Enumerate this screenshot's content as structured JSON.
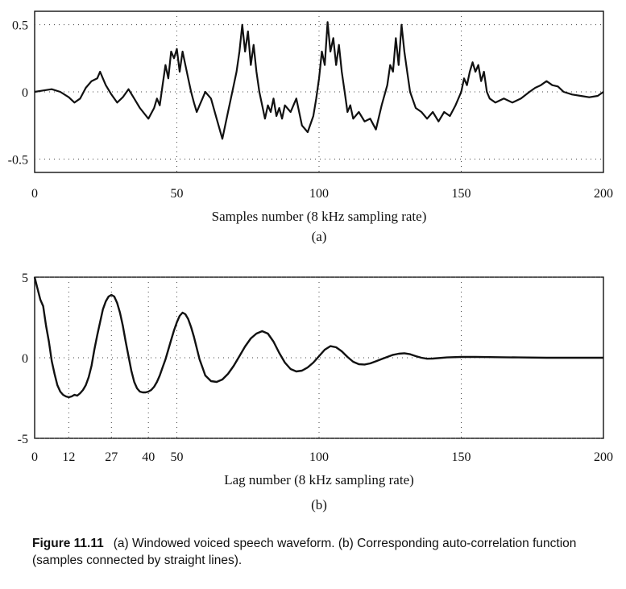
{
  "figure": {
    "number": "Figure 11.11",
    "caption": "(a) Windowed voiced speech waveform. (b) Corresponding auto-correlation function (samples connected by straight lines)."
  },
  "chart_data": [
    {
      "type": "line",
      "panel_label": "(a)",
      "xlabel": "Samples number (8 kHz sampling rate)",
      "ylabel": "",
      "xlim": [
        0,
        200
      ],
      "ylim": [
        -0.6,
        0.6
      ],
      "xticks": [
        0,
        50,
        100,
        150,
        200
      ],
      "xtick_labels": [
        "0",
        "50",
        "100",
        "150",
        "200"
      ],
      "yticks": [
        0.5,
        0,
        -0.5
      ],
      "ytick_labels": [
        "0.5",
        "0",
        "-0.5"
      ],
      "grid": "dotted",
      "series": [
        {
          "x": [
            0,
            3,
            6,
            9,
            12,
            14,
            16,
            18,
            20,
            22,
            23,
            24,
            25,
            27,
            29,
            31,
            33,
            35,
            37,
            40,
            42,
            43,
            44,
            45,
            46,
            47,
            48,
            49,
            50,
            51,
            52,
            53,
            54,
            55,
            56,
            57,
            58,
            59,
            60,
            62,
            64,
            66,
            68,
            70,
            71,
            72,
            73,
            74,
            75,
            76,
            77,
            78,
            79,
            80,
            81,
            82,
            83,
            84,
            85,
            86,
            87,
            88,
            90,
            92,
            94,
            96,
            98,
            99,
            100,
            101,
            102,
            103,
            104,
            105,
            106,
            107,
            108,
            109,
            110,
            111,
            112,
            114,
            116,
            118,
            120,
            122,
            124,
            125,
            126,
            127,
            128,
            129,
            130,
            131,
            132,
            134,
            136,
            138,
            140,
            142,
            144,
            146,
            148,
            150,
            151,
            152,
            153,
            154,
            155,
            156,
            157,
            158,
            159,
            160,
            162,
            165,
            168,
            171,
            174,
            176,
            178,
            180,
            182,
            184,
            186,
            189,
            192,
            195,
            198,
            200
          ],
          "y": [
            0,
            0.01,
            0.02,
            0,
            -0.04,
            -0.08,
            -0.05,
            0.03,
            0.08,
            0.1,
            0.15,
            0.1,
            0.05,
            -0.02,
            -0.08,
            -0.04,
            0.02,
            -0.05,
            -0.12,
            -0.2,
            -0.12,
            -0.05,
            -0.1,
            0.05,
            0.2,
            0.1,
            0.3,
            0.25,
            0.32,
            0.15,
            0.3,
            0.2,
            0.1,
            0,
            -0.08,
            -0.15,
            -0.1,
            -0.05,
            0,
            -0.05,
            -0.2,
            -0.35,
            -0.15,
            0.05,
            0.15,
            0.3,
            0.5,
            0.3,
            0.45,
            0.2,
            0.35,
            0.15,
            0,
            -0.1,
            -0.2,
            -0.1,
            -0.15,
            -0.05,
            -0.18,
            -0.12,
            -0.2,
            -0.1,
            -0.15,
            -0.05,
            -0.25,
            -0.3,
            -0.18,
            -0.05,
            0.1,
            0.3,
            0.2,
            0.52,
            0.3,
            0.4,
            0.2,
            0.35,
            0.15,
            0,
            -0.15,
            -0.1,
            -0.2,
            -0.15,
            -0.22,
            -0.2,
            -0.28,
            -0.1,
            0.05,
            0.2,
            0.15,
            0.4,
            0.2,
            0.5,
            0.3,
            0.15,
            0,
            -0.12,
            -0.15,
            -0.2,
            -0.15,
            -0.22,
            -0.15,
            -0.18,
            -0.1,
            0,
            0.1,
            0.05,
            0.15,
            0.22,
            0.15,
            0.2,
            0.08,
            0.15,
            0,
            -0.05,
            -0.08,
            -0.05,
            -0.08,
            -0.05,
            0,
            0.03,
            0.05,
            0.08,
            0.05,
            0.04,
            0,
            -0.02,
            -0.03,
            -0.04,
            -0.03,
            0
          ]
        }
      ]
    },
    {
      "type": "line",
      "panel_label": "(b)",
      "xlabel": "Lag number (8 kHz sampling rate)",
      "ylabel": "",
      "xlim": [
        0,
        200
      ],
      "ylim": [
        -5,
        5
      ],
      "xticks": [
        0,
        12,
        27,
        40,
        50,
        100,
        150,
        200
      ],
      "xtick_labels": [
        "0",
        "12",
        "27",
        "40",
        "50",
        "100",
        "150",
        "200"
      ],
      "yticks": [
        5,
        0,
        -5
      ],
      "ytick_labels": [
        "5",
        "0",
        "-5"
      ],
      "grid": "dotted",
      "series": [
        {
          "x": [
            0,
            1,
            2,
            3,
            4,
            5,
            6,
            7,
            8,
            9,
            10,
            11,
            12,
            13,
            14,
            15,
            16,
            17,
            18,
            19,
            20,
            21,
            22,
            23,
            24,
            25,
            26,
            27,
            28,
            29,
            30,
            31,
            32,
            33,
            34,
            35,
            36,
            37,
            38,
            39,
            40,
            41,
            42,
            43,
            44,
            45,
            46,
            47,
            48,
            49,
            50,
            51,
            52,
            53,
            54,
            55,
            56,
            57,
            58,
            59,
            60,
            62,
            64,
            66,
            68,
            70,
            72,
            74,
            76,
            78,
            80,
            82,
            84,
            86,
            88,
            90,
            92,
            94,
            96,
            98,
            100,
            102,
            104,
            106,
            108,
            110,
            112,
            114,
            116,
            118,
            120,
            122,
            124,
            126,
            128,
            130,
            132,
            134,
            136,
            138,
            140,
            145,
            150,
            155,
            160,
            165,
            170,
            180,
            190,
            200
          ],
          "y": [
            5,
            4.3,
            3.6,
            3.2,
            2.0,
            1.0,
            -0.2,
            -1.0,
            -1.7,
            -2.1,
            -2.3,
            -2.4,
            -2.45,
            -2.4,
            -2.3,
            -2.35,
            -2.2,
            -2.0,
            -1.7,
            -1.2,
            -0.5,
            0.5,
            1.4,
            2.2,
            3.0,
            3.5,
            3.8,
            3.9,
            3.8,
            3.4,
            2.8,
            2.0,
            1.0,
            0.1,
            -0.8,
            -1.5,
            -1.9,
            -2.1,
            -2.15,
            -2.15,
            -2.1,
            -2.0,
            -1.8,
            -1.5,
            -1.1,
            -0.6,
            -0.1,
            0.5,
            1.1,
            1.7,
            2.2,
            2.6,
            2.8,
            2.7,
            2.4,
            1.9,
            1.3,
            0.6,
            -0.1,
            -0.6,
            -1.1,
            -1.45,
            -1.5,
            -1.35,
            -1.0,
            -0.5,
            0.1,
            0.7,
            1.2,
            1.5,
            1.65,
            1.5,
            1.0,
            0.3,
            -0.3,
            -0.7,
            -0.85,
            -0.8,
            -0.6,
            -0.3,
            0.1,
            0.5,
            0.72,
            0.65,
            0.4,
            0.05,
            -0.25,
            -0.4,
            -0.42,
            -0.35,
            -0.22,
            -0.08,
            0.05,
            0.18,
            0.25,
            0.28,
            0.22,
            0.1,
            0,
            -0.06,
            -0.05,
            0.02,
            0.05,
            0.05,
            0.04,
            0.03,
            0.02,
            0,
            0,
            0
          ]
        }
      ]
    }
  ]
}
